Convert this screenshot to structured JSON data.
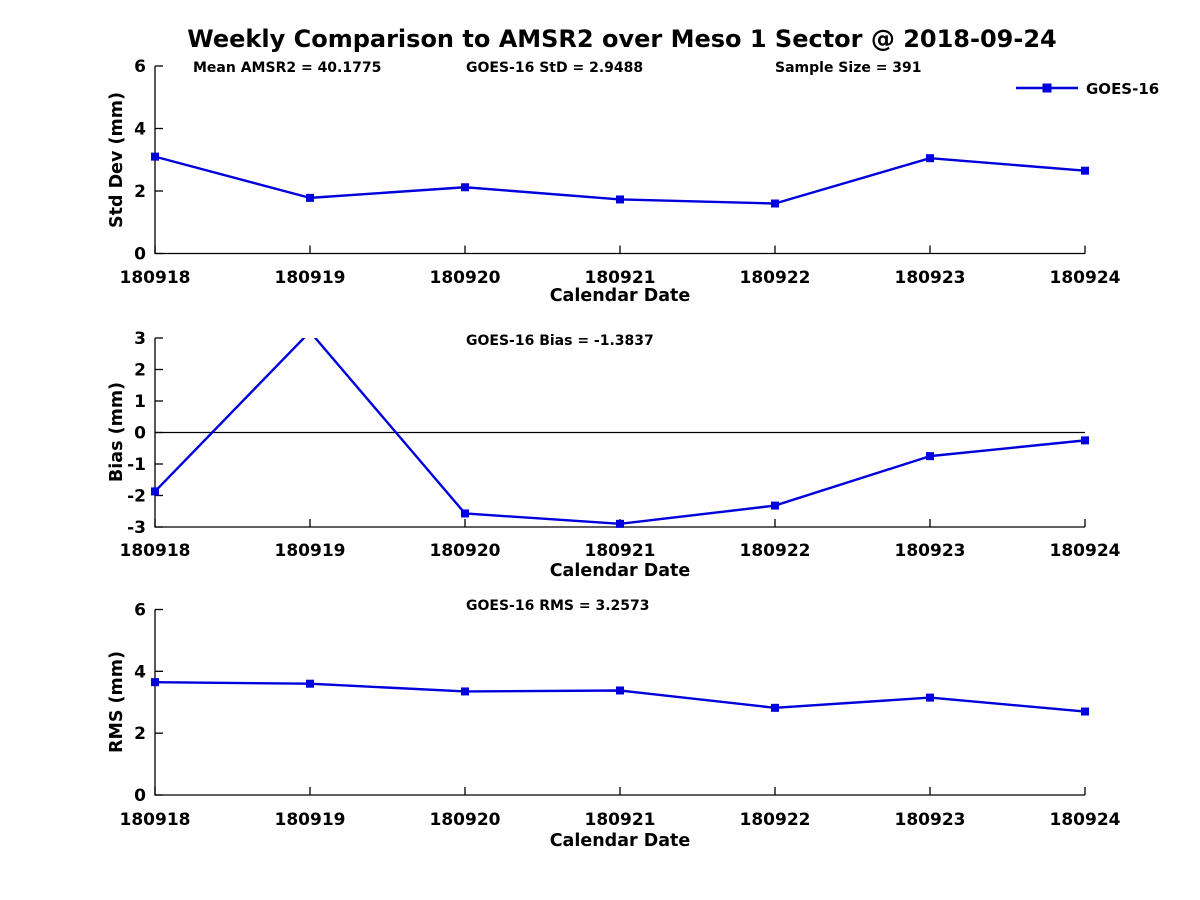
{
  "title": "Weekly Comparison to AMSR2 over Meso 1 Sector @ 2018-09-24",
  "legend": {
    "label": "GOES-16",
    "color": "#0000dd"
  },
  "stats": {
    "mean_amsr2": 40.1775,
    "goes16_std": 2.9488,
    "sample_size": 391,
    "goes16_bias": -1.3837,
    "goes16_rms": 3.2573
  },
  "chart_data": [
    {
      "type": "line",
      "ylabel": "Std Dev (mm)",
      "xlabel": "Calendar Date",
      "categories": [
        "180918",
        "180919",
        "180920",
        "180921",
        "180922",
        "180923",
        "180924"
      ],
      "series": [
        {
          "name": "GOES-16",
          "values": [
            3.1,
            1.78,
            2.12,
            1.73,
            1.6,
            3.05,
            2.65
          ]
        }
      ],
      "ylim": [
        0,
        6
      ],
      "yticks": [
        0,
        2,
        4,
        6
      ],
      "annotations": [
        "Mean AMSR2 = 40.1775",
        "GOES-16 StD = 2.9488",
        "Sample Size = 391"
      ],
      "grid": false,
      "legend_position": "top-right"
    },
    {
      "type": "line",
      "ylabel": "Bias (mm)",
      "xlabel": "Calendar Date",
      "categories": [
        "180918",
        "180919",
        "180920",
        "180921",
        "180922",
        "180923",
        "180924"
      ],
      "series": [
        {
          "name": "GOES-16",
          "values": [
            -1.87,
            3.0,
            -2.57,
            -2.9,
            -2.32,
            -0.75,
            -0.25
          ],
          "clipped_at_ymax_indices": [
            1
          ]
        }
      ],
      "ylim": [
        -3,
        3
      ],
      "yticks": [
        -3,
        -2,
        -1,
        0,
        1,
        2,
        3
      ],
      "annotations": [
        "GOES-16 Bias  = -1.3837"
      ],
      "zero_line": true,
      "grid": false
    },
    {
      "type": "line",
      "ylabel": "RMS (mm)",
      "xlabel": "Calendar Date",
      "categories": [
        "180918",
        "180919",
        "180920",
        "180921",
        "180922",
        "180923",
        "180924"
      ],
      "series": [
        {
          "name": "GOES-16",
          "values": [
            3.65,
            3.6,
            3.35,
            3.38,
            2.82,
            3.15,
            2.7
          ]
        }
      ],
      "ylim": [
        0,
        6
      ],
      "yticks": [
        0,
        2,
        4,
        6
      ],
      "annotations": [
        "GOES-16 RMS = 3.2573"
      ],
      "grid": false
    }
  ]
}
